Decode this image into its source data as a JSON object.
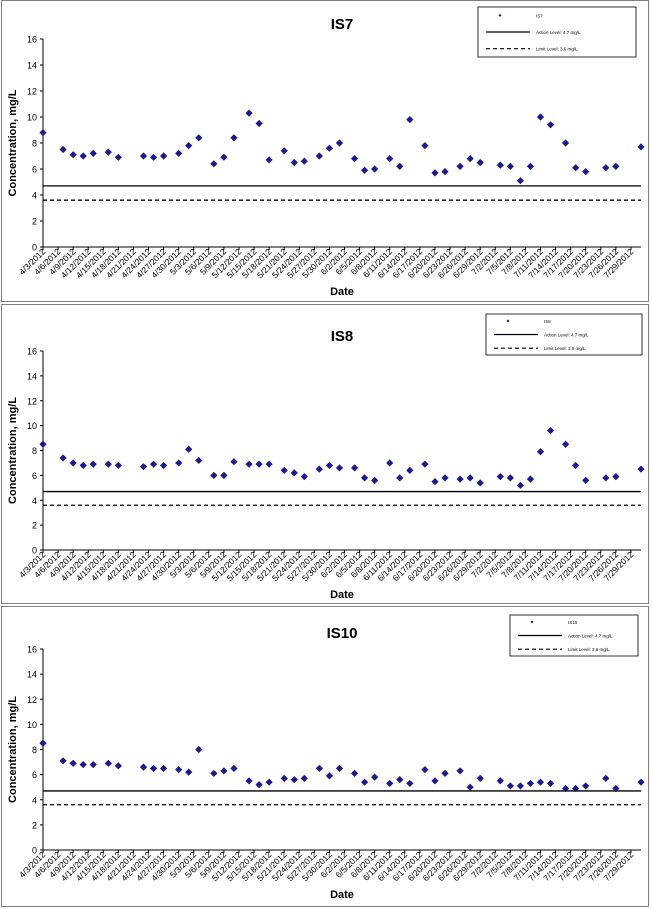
{
  "chart_data": [
    {
      "type": "scatter",
      "title": "IS7",
      "xlabel": "Date",
      "ylabel": "Concentration, mg/L",
      "ylim": [
        0,
        16
      ],
      "yticks": [
        0,
        2,
        4,
        6,
        8,
        10,
        12,
        14,
        16
      ],
      "xlim": [
        "4/3/2012",
        "7/31/2012"
      ],
      "xticks": [
        "4/3/2012",
        "4/6/2012",
        "4/9/2012",
        "4/12/2012",
        "4/15/2012",
        "4/18/2012",
        "4/21/2012",
        "4/24/2012",
        "4/27/2012",
        "4/30/2012",
        "5/3/2012",
        "5/6/2012",
        "5/9/2012",
        "5/12/2012",
        "5/15/2012",
        "5/18/2012",
        "5/21/2012",
        "5/24/2012",
        "5/27/2012",
        "5/30/2012",
        "6/2/2012",
        "6/5/2012",
        "6/8/2012",
        "6/11/2012",
        "6/14/2012",
        "6/17/2012",
        "6/20/2012",
        "6/23/2012",
        "6/26/2012",
        "6/29/2012",
        "7/2/2012",
        "7/5/2012",
        "7/8/2012",
        "7/11/2012",
        "7/14/2012",
        "7/17/2012",
        "7/20/2012",
        "7/23/2012",
        "7/26/2012",
        "7/29/2012"
      ],
      "grid": false,
      "legend_position": "top-right",
      "series": [
        {
          "name": "IS7",
          "color": "#1a1a8c",
          "marker": "diamond",
          "x": [
            "4/3/2012",
            "4/7/2012",
            "4/9/2012",
            "4/11/2012",
            "4/13/2012",
            "4/16/2012",
            "4/18/2012",
            "4/23/2012",
            "4/25/2012",
            "4/27/2012",
            "4/30/2012",
            "5/2/2012",
            "5/4/2012",
            "5/7/2012",
            "5/9/2012",
            "5/11/2012",
            "5/14/2012",
            "5/16/2012",
            "5/18/2012",
            "5/21/2012",
            "5/23/2012",
            "5/25/2012",
            "5/28/2012",
            "5/30/2012",
            "6/1/2012",
            "6/4/2012",
            "6/6/2012",
            "6/8/2012",
            "6/11/2012",
            "6/13/2012",
            "6/15/2012",
            "6/18/2012",
            "6/20/2012",
            "6/22/2012",
            "6/25/2012",
            "6/27/2012",
            "6/29/2012",
            "7/3/2012",
            "7/5/2012",
            "7/7/2012",
            "7/9/2012",
            "7/11/2012",
            "7/13/2012",
            "7/16/2012",
            "7/18/2012",
            "7/20/2012",
            "7/24/2012",
            "7/26/2012",
            "7/31/2012"
          ],
          "y": [
            8.8,
            7.5,
            7.1,
            7.0,
            7.2,
            7.3,
            6.9,
            7.0,
            6.9,
            7.0,
            7.2,
            7.8,
            8.4,
            6.4,
            6.9,
            8.4,
            10.3,
            9.5,
            6.7,
            7.4,
            6.5,
            6.6,
            7.0,
            7.6,
            8.0,
            6.8,
            5.9,
            6.0,
            6.8,
            6.2,
            9.8,
            7.8,
            5.7,
            5.8,
            6.2,
            6.8,
            6.5,
            6.3,
            6.2,
            5.1,
            6.2,
            10.0,
            9.4,
            8.0,
            6.1,
            5.8,
            6.1,
            6.2,
            7.7
          ]
        },
        {
          "name": "Action Level: 4.7 mg/L",
          "type": "hline",
          "value": 4.7,
          "style": "solid"
        },
        {
          "name": "Limit Level: 3.6 mg/L",
          "type": "hline",
          "value": 3.6,
          "style": "dashed"
        }
      ]
    },
    {
      "type": "scatter",
      "title": "IS8",
      "xlabel": "Date",
      "ylabel": "Concentration, mg/L",
      "ylim": [
        0,
        16
      ],
      "yticks": [
        0,
        2,
        4,
        6,
        8,
        10,
        12,
        14,
        16
      ],
      "xlim": [
        "4/3/2012",
        "7/31/2012"
      ],
      "xticks": [
        "4/3/2012",
        "4/6/2012",
        "4/9/2012",
        "4/12/2012",
        "4/15/2012",
        "4/18/2012",
        "4/21/2012",
        "4/24/2012",
        "4/27/2012",
        "4/30/2012",
        "5/3/2012",
        "5/6/2012",
        "5/9/2012",
        "5/12/2012",
        "5/15/2012",
        "5/18/2012",
        "5/21/2012",
        "5/24/2012",
        "5/27/2012",
        "5/30/2012",
        "6/2/2012",
        "6/5/2012",
        "6/8/2012",
        "6/11/2012",
        "6/14/2012",
        "6/17/2012",
        "6/20/2012",
        "6/23/2012",
        "6/26/2012",
        "6/29/2012",
        "7/2/2012",
        "7/5/2012",
        "7/8/2012",
        "7/11/2012",
        "7/14/2012",
        "7/17/2012",
        "7/20/2012",
        "7/23/2012",
        "7/26/2012",
        "7/29/2012"
      ],
      "grid": false,
      "legend_position": "top-right",
      "series": [
        {
          "name": "IS8",
          "color": "#1a1a8c",
          "marker": "diamond",
          "x": [
            "4/3/2012",
            "4/7/2012",
            "4/9/2012",
            "4/11/2012",
            "4/13/2012",
            "4/16/2012",
            "4/18/2012",
            "4/23/2012",
            "4/25/2012",
            "4/27/2012",
            "4/30/2012",
            "5/2/2012",
            "5/4/2012",
            "5/7/2012",
            "5/9/2012",
            "5/11/2012",
            "5/14/2012",
            "5/16/2012",
            "5/18/2012",
            "5/21/2012",
            "5/23/2012",
            "5/25/2012",
            "5/28/2012",
            "5/30/2012",
            "6/1/2012",
            "6/4/2012",
            "6/6/2012",
            "6/8/2012",
            "6/11/2012",
            "6/13/2012",
            "6/15/2012",
            "6/18/2012",
            "6/20/2012",
            "6/22/2012",
            "6/25/2012",
            "6/27/2012",
            "6/29/2012",
            "7/3/2012",
            "7/5/2012",
            "7/7/2012",
            "7/9/2012",
            "7/11/2012",
            "7/13/2012",
            "7/16/2012",
            "7/18/2012",
            "7/20/2012",
            "7/24/2012",
            "7/26/2012",
            "7/31/2012"
          ],
          "y": [
            8.5,
            7.4,
            7.0,
            6.8,
            6.9,
            6.9,
            6.8,
            6.7,
            6.9,
            6.8,
            7.0,
            8.1,
            7.2,
            6.0,
            6.0,
            7.1,
            6.9,
            6.9,
            6.9,
            6.4,
            6.2,
            5.9,
            6.5,
            6.8,
            6.6,
            6.6,
            5.8,
            5.6,
            7.0,
            5.8,
            6.4,
            6.9,
            5.5,
            5.8,
            5.7,
            5.8,
            5.4,
            5.9,
            5.8,
            5.2,
            5.7,
            7.9,
            9.6,
            8.5,
            6.8,
            5.6,
            5.8,
            5.9,
            6.5
          ]
        },
        {
          "name": "Action Level: 4.7 mg/L",
          "type": "hline",
          "value": 4.7,
          "style": "solid"
        },
        {
          "name": "Limit Level: 3.6 mg/L",
          "type": "hline",
          "value": 3.6,
          "style": "dashed"
        }
      ]
    },
    {
      "type": "scatter",
      "title": "IS10",
      "xlabel": "Date",
      "ylabel": "Concentration, mg/L",
      "ylim": [
        0,
        16
      ],
      "yticks": [
        0,
        2,
        4,
        6,
        8,
        10,
        12,
        14,
        16
      ],
      "xlim": [
        "4/3/2012",
        "7/31/2012"
      ],
      "xticks": [
        "4/3/2012",
        "4/6/2012",
        "4/9/2012",
        "4/12/2012",
        "4/15/2012",
        "4/18/2012",
        "4/21/2012",
        "4/24/2012",
        "4/27/2012",
        "4/30/2012",
        "5/3/2012",
        "5/6/2012",
        "5/9/2012",
        "5/12/2012",
        "5/15/2012",
        "5/18/2012",
        "5/21/2012",
        "5/24/2012",
        "5/27/2012",
        "5/30/2012",
        "6/2/2012",
        "6/5/2012",
        "6/8/2012",
        "6/11/2012",
        "6/14/2012",
        "6/17/2012",
        "6/20/2012",
        "6/23/2012",
        "6/26/2012",
        "6/29/2012",
        "7/2/2012",
        "7/5/2012",
        "7/8/2012",
        "7/11/2012",
        "7/14/2012",
        "7/17/2012",
        "7/20/2012",
        "7/23/2012",
        "7/26/2012",
        "7/29/2012"
      ],
      "grid": false,
      "legend_position": "top-right",
      "series": [
        {
          "name": "IS10",
          "color": "#1a1a8c",
          "marker": "diamond",
          "x": [
            "4/3/2012",
            "4/7/2012",
            "4/9/2012",
            "4/11/2012",
            "4/13/2012",
            "4/16/2012",
            "4/18/2012",
            "4/23/2012",
            "4/25/2012",
            "4/27/2012",
            "4/30/2012",
            "5/2/2012",
            "5/4/2012",
            "5/7/2012",
            "5/9/2012",
            "5/11/2012",
            "5/14/2012",
            "5/16/2012",
            "5/18/2012",
            "5/21/2012",
            "5/23/2012",
            "5/25/2012",
            "5/28/2012",
            "5/30/2012",
            "6/1/2012",
            "6/4/2012",
            "6/6/2012",
            "6/8/2012",
            "6/11/2012",
            "6/13/2012",
            "6/15/2012",
            "6/18/2012",
            "6/20/2012",
            "6/22/2012",
            "6/25/2012",
            "6/27/2012",
            "6/29/2012",
            "7/3/2012",
            "7/5/2012",
            "7/7/2012",
            "7/9/2012",
            "7/11/2012",
            "7/13/2012",
            "7/16/2012",
            "7/18/2012",
            "7/20/2012",
            "7/24/2012",
            "7/26/2012",
            "7/31/2012"
          ],
          "y": [
            8.5,
            7.1,
            6.9,
            6.8,
            6.8,
            6.9,
            6.7,
            6.6,
            6.5,
            6.5,
            6.4,
            6.2,
            8.0,
            6.1,
            6.3,
            6.5,
            5.5,
            5.2,
            5.4,
            5.7,
            5.6,
            5.7,
            6.5,
            5.9,
            6.5,
            6.1,
            5.4,
            5.8,
            5.3,
            5.6,
            5.3,
            6.4,
            5.5,
            6.1,
            6.3,
            5.0,
            5.7,
            5.5,
            5.1,
            5.1,
            5.3,
            5.4,
            5.3,
            4.9,
            4.9,
            5.1,
            5.7,
            4.9,
            5.4
          ]
        },
        {
          "name": "Action Level: 4.7 mg/L",
          "type": "hline",
          "value": 4.7,
          "style": "solid"
        },
        {
          "name": "Limit Level: 3.6 mg/L",
          "type": "hline",
          "value": 3.6,
          "style": "dashed"
        }
      ]
    }
  ]
}
